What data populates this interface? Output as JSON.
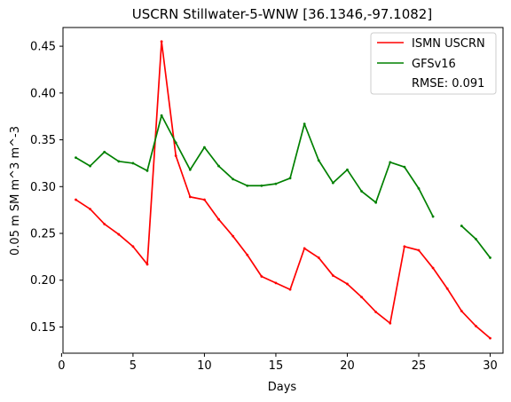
{
  "chart_data": {
    "type": "line",
    "title": "USCRN Stillwater-5-WNW [36.1346,-97.1082]",
    "xlabel": "Days",
    "ylabel": "0.05 m SM m^3 m^-3",
    "xlim": [
      0.1,
      30.9
    ],
    "ylim": [
      0.122,
      0.47
    ],
    "xticks": [
      0,
      5,
      10,
      15,
      20,
      25,
      30
    ],
    "xtick_labels": [
      "0",
      "5",
      "10",
      "15",
      "20",
      "25",
      "30"
    ],
    "yticks": [
      0.15,
      0.2,
      0.25,
      0.3,
      0.35,
      0.4,
      0.45
    ],
    "ytick_labels": [
      "0.15",
      "0.20",
      "0.25",
      "0.30",
      "0.35",
      "0.40",
      "0.45"
    ],
    "grid": false,
    "legend_position": "top-right",
    "annotation": "RMSE: 0.091",
    "series": [
      {
        "name": "ISMN USCRN",
        "color": "#ff0000",
        "x": [
          1,
          2,
          3,
          4,
          5,
          6,
          7,
          8,
          9,
          10,
          11,
          12,
          13,
          14,
          15,
          16,
          17,
          18,
          19,
          20,
          21,
          22,
          23,
          24,
          25,
          26,
          27,
          28,
          29,
          30
        ],
        "y": [
          0.286,
          0.276,
          0.26,
          0.249,
          0.236,
          0.217,
          0.455,
          0.333,
          0.289,
          0.286,
          0.265,
          0.247,
          0.227,
          0.204,
          0.197,
          0.19,
          0.234,
          0.224,
          0.205,
          0.196,
          0.182,
          0.166,
          0.154,
          0.236,
          0.232,
          0.213,
          0.191,
          0.167,
          0.151,
          0.138
        ]
      },
      {
        "name": "GFSv16",
        "color": "#008000",
        "x": [
          1,
          2,
          3,
          4,
          5,
          6,
          7,
          8,
          9,
          10,
          11,
          12,
          13,
          14,
          15,
          16,
          17,
          18,
          19,
          20,
          21,
          22,
          23,
          24,
          25,
          26,
          27,
          28,
          29,
          30
        ],
        "y": [
          0.331,
          0.322,
          0.337,
          0.327,
          0.325,
          0.317,
          0.376,
          0.347,
          0.318,
          0.342,
          0.322,
          0.308,
          0.301,
          0.301,
          0.303,
          0.309,
          0.367,
          0.328,
          0.304,
          0.318,
          0.295,
          0.283,
          0.326,
          0.321,
          0.298,
          0.268,
          null,
          0.258,
          0.244,
          0.224
        ]
      }
    ]
  }
}
